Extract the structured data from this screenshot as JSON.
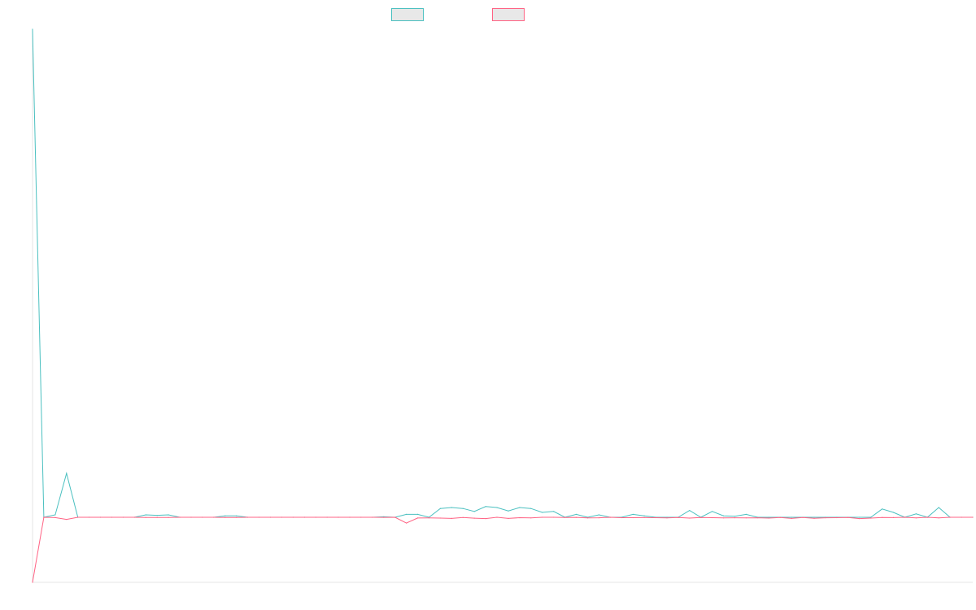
{
  "chart_data": {
    "type": "line",
    "title": "",
    "xlabel": "",
    "ylabel": "",
    "grid": false,
    "legend_position": "top",
    "point_count": 84,
    "ylim": [
      -1,
      1
    ],
    "series": [
      {
        "color": "#4bc0c0",
        "values": [
          1.0,
          0.0,
          0.005,
          0.09,
          0.0,
          0.0,
          0.0,
          0.0,
          0.0,
          0.0,
          0.005,
          0.004,
          0.005,
          0.0,
          0.0,
          0.0,
          0.0,
          0.003,
          0.003,
          0.0,
          0.0,
          0.0,
          0.0,
          0.0,
          0.0,
          0.0,
          0.0,
          0.0,
          0.0,
          0.0,
          0.0,
          0.001,
          0.0,
          0.006,
          0.006,
          0.0,
          0.018,
          0.02,
          0.018,
          0.012,
          0.022,
          0.02,
          0.013,
          0.02,
          0.018,
          0.01,
          0.012,
          0.0,
          0.006,
          0.0,
          0.005,
          0.0,
          0.0,
          0.006,
          0.003,
          0.0,
          0.0,
          0.0,
          0.014,
          0.0,
          0.012,
          0.003,
          0.002,
          0.006,
          0.0,
          0.0,
          0.0,
          0.0,
          0.0,
          0.0,
          0.0,
          0.0,
          0.0,
          0.0,
          0.0,
          0.017,
          0.01,
          0.0,
          0.007,
          0.0,
          0.02,
          0.0,
          0.0,
          0.0
        ]
      },
      {
        "color": "#ff6384",
        "values": [
          -1.0,
          0.0,
          -0.005,
          -0.033,
          0.0,
          0.0,
          0.0,
          0.0,
          0.0,
          0.0,
          -0.002,
          -0.002,
          -0.004,
          0.0,
          0.0,
          0.0,
          0.0,
          -0.003,
          -0.003,
          0.0,
          0.0,
          0.0,
          0.0,
          0.0,
          0.0,
          0.0,
          0.0,
          0.0,
          0.0,
          0.0,
          0.0,
          -0.001,
          0.0,
          -0.089,
          -0.011,
          -0.01,
          -0.013,
          -0.018,
          -0.004,
          -0.014,
          -0.02,
          0.0,
          -0.018,
          -0.006,
          -0.01,
          0.0,
          0.0,
          -0.004,
          -0.001,
          -0.01,
          -0.008,
          0.0,
          -0.006,
          -0.006,
          -0.005,
          -0.006,
          -0.01,
          -0.003,
          -0.012,
          -0.004,
          -0.006,
          -0.01,
          -0.007,
          -0.009,
          -0.007,
          -0.012,
          -0.004,
          -0.018,
          -0.004,
          -0.016,
          -0.008,
          -0.006,
          -0.003,
          -0.02,
          -0.013,
          -0.003,
          -0.005,
          0.0,
          -0.01,
          0.0,
          -0.01,
          0.0,
          0.0,
          0.0
        ]
      }
    ]
  }
}
